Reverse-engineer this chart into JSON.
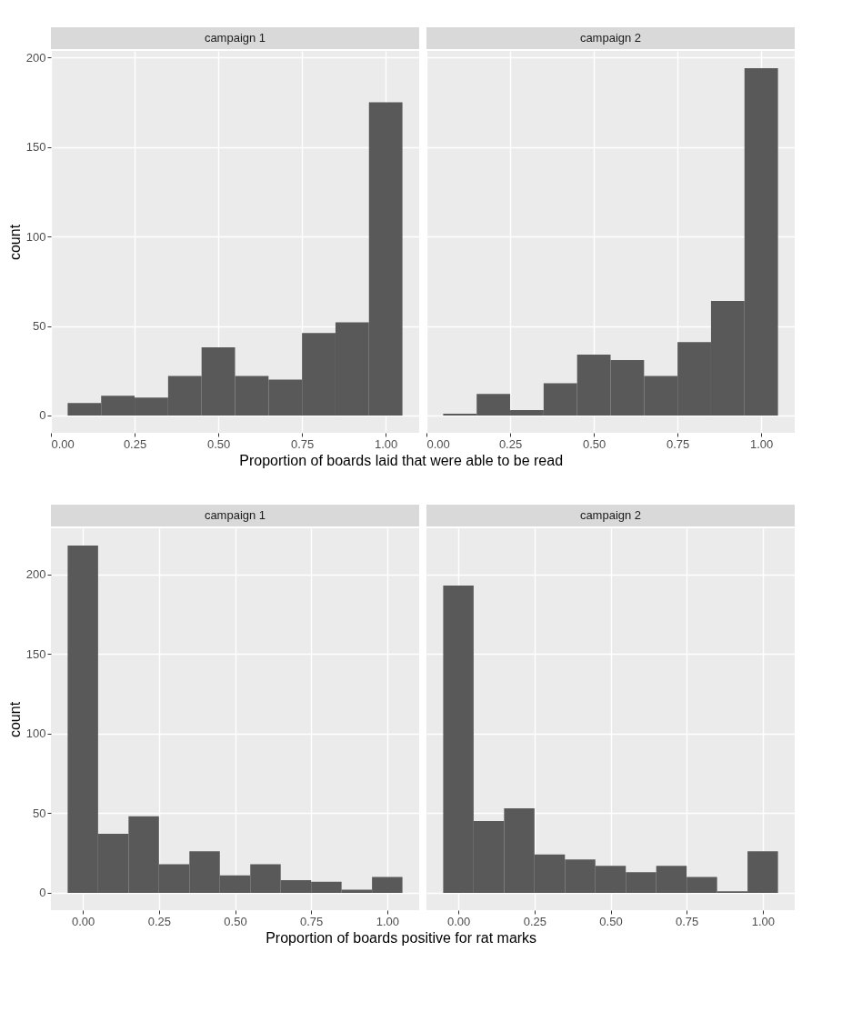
{
  "chart_data": [
    {
      "type": "histogram",
      "title": "campaign 1",
      "ylabel": "count",
      "xlabel": "Proportion of boards laid that were able to be read",
      "bins": [
        0.05,
        0.15,
        0.25,
        0.35,
        0.45,
        0.55,
        0.65,
        0.75,
        0.85,
        0.95,
        1.05
      ],
      "values": [
        7,
        11,
        10,
        22,
        38,
        22,
        20,
        46,
        52,
        175
      ],
      "color": "#595959",
      "xlim": [
        0,
        1.1
      ],
      "xticks": [
        {
          "value": 0,
          "label": "0.00"
        },
        {
          "value": 0.25,
          "label": "0.25"
        },
        {
          "value": 0.5,
          "label": "0.50"
        },
        {
          "value": 0.75,
          "label": "0.75"
        },
        {
          "value": 1,
          "label": "1.00"
        }
      ],
      "ylim": [
        -9.7,
        203.7
      ],
      "yticks": [
        0,
        50,
        100,
        150,
        200
      ],
      "grid": true
    },
    {
      "type": "histogram",
      "title": "campaign 2",
      "bins": [
        0.05,
        0.15,
        0.25,
        0.35,
        0.45,
        0.55,
        0.65,
        0.75,
        0.85,
        0.95,
        1.05
      ],
      "values": [
        1,
        12,
        3,
        18,
        34,
        31,
        22,
        41,
        64,
        194
      ],
      "color": "#595959",
      "xlim": [
        0,
        1.1
      ],
      "xticks": [
        {
          "value": 0,
          "label": "0.00"
        },
        {
          "value": 0.25,
          "label": "0.25"
        },
        {
          "value": 0.5,
          "label": "0.50"
        },
        {
          "value": 0.75,
          "label": "0.75"
        },
        {
          "value": 1,
          "label": "1.00"
        }
      ],
      "ylim": [
        -9.7,
        203.7
      ],
      "yticks": [
        0,
        50,
        100,
        150,
        200
      ],
      "grid": true,
      "tick_labels": "x"
    },
    {
      "type": "histogram",
      "title": "campaign 1",
      "ylabel": "count",
      "xlabel": "Proportion of boards positive for rat marks",
      "bins": [
        -0.05,
        0.05,
        0.15,
        0.25,
        0.35,
        0.45,
        0.55,
        0.65,
        0.75,
        0.85,
        0.95,
        1.05
      ],
      "values": [
        218,
        37,
        48,
        18,
        26,
        11,
        18,
        8,
        7,
        2,
        10
      ],
      "color": "#595959",
      "xlim": [
        -0.105,
        1.105
      ],
      "xticks": [
        {
          "value": 0,
          "label": "0.00"
        },
        {
          "value": 0.25,
          "label": "0.25"
        },
        {
          "value": 0.5,
          "label": "0.50"
        },
        {
          "value": 0.75,
          "label": "0.75"
        },
        {
          "value": 1,
          "label": "1.00"
        }
      ],
      "ylim": [
        -10.9,
        228.9
      ],
      "yticks": [
        0,
        50,
        100,
        150,
        200
      ],
      "grid": true
    },
    {
      "type": "histogram",
      "title": "campaign 2",
      "bins": [
        -0.05,
        0.05,
        0.15,
        0.25,
        0.35,
        0.45,
        0.55,
        0.65,
        0.75,
        0.85,
        0.95,
        1.05
      ],
      "values": [
        193,
        45,
        53,
        24,
        21,
        17,
        13,
        17,
        10,
        1,
        26
      ],
      "color": "#595959",
      "xlim": [
        -0.105,
        1.105
      ],
      "xticks": [
        {
          "value": 0,
          "label": "0.00"
        },
        {
          "value": 0.25,
          "label": "0.25"
        },
        {
          "value": 0.5,
          "label": "0.50"
        },
        {
          "value": 0.75,
          "label": "0.75"
        },
        {
          "value": 1,
          "label": "1.00"
        }
      ],
      "ylim": [
        -10.9,
        228.9
      ],
      "yticks": [
        0,
        50,
        100,
        150,
        200
      ],
      "grid": true,
      "tick_labels": "x"
    }
  ]
}
